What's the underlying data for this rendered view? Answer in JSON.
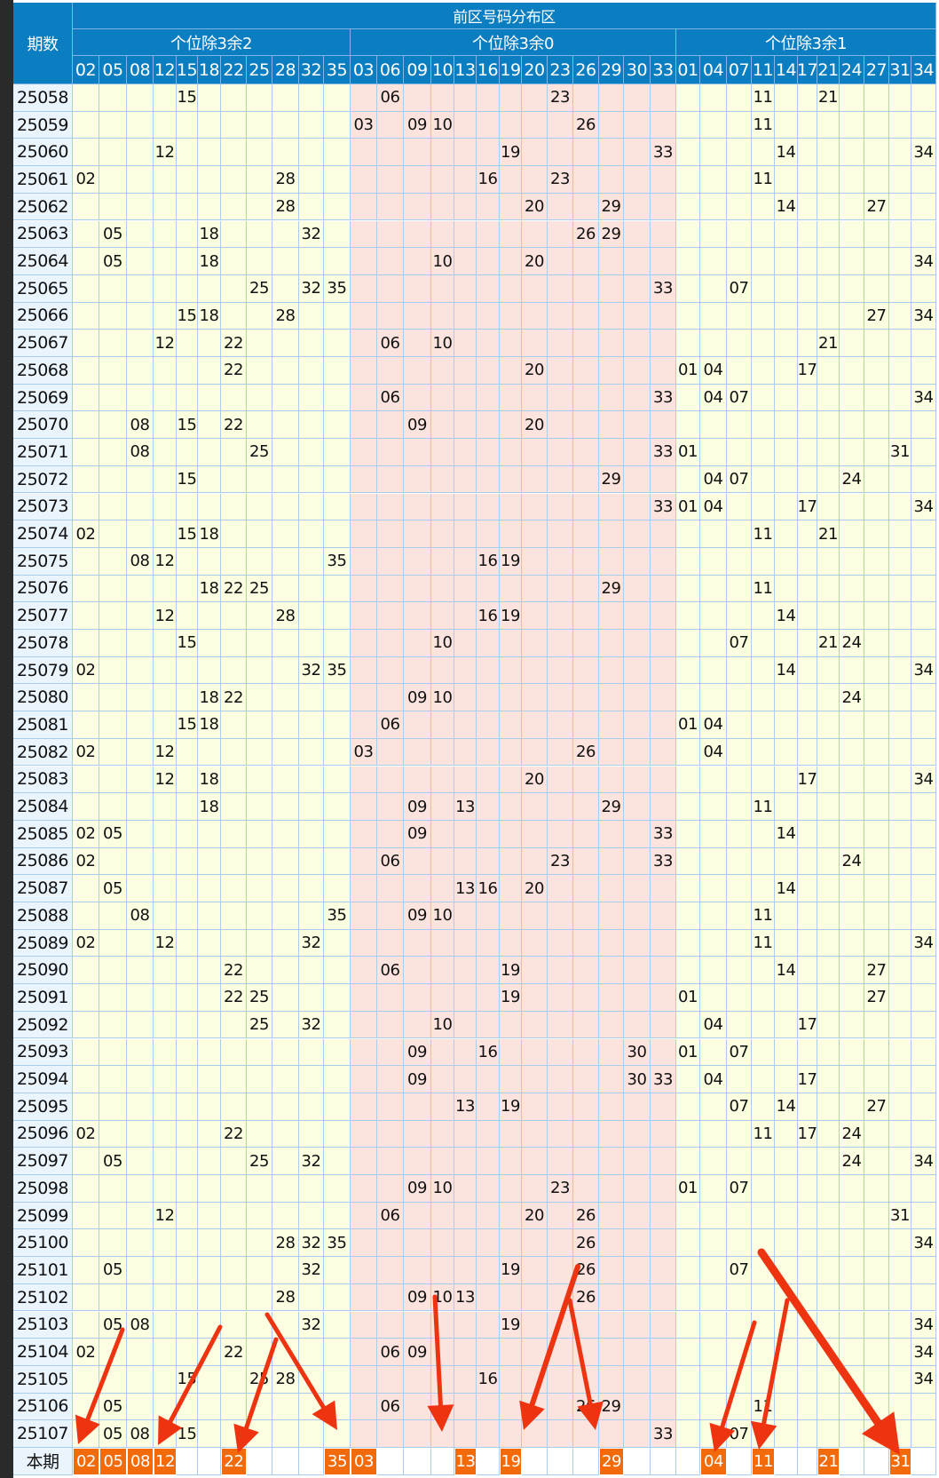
{
  "header": {
    "title": "前区号码分布区",
    "period_label": "期数",
    "groups": [
      {
        "label": "个位除3余2",
        "columns": [
          "02",
          "05",
          "08",
          "12",
          "15",
          "18",
          "22",
          "25",
          "28",
          "32",
          "35"
        ]
      },
      {
        "label": "个位除3余0",
        "columns": [
          "03",
          "06",
          "09",
          "10",
          "13",
          "16",
          "19",
          "20",
          "23",
          "26",
          "29",
          "30",
          "33"
        ]
      },
      {
        "label": "个位除3余1",
        "columns": [
          "01",
          "04",
          "07",
          "11",
          "14",
          "17",
          "21",
          "24",
          "27",
          "31",
          "34"
        ]
      }
    ]
  },
  "colors": {
    "header": "#0b7dc1",
    "group_yellow": "#fdfde1",
    "group_pink": "#fde3de",
    "highlight": "#f36a0a",
    "arrow": "#ee3311"
  },
  "rows": [
    {
      "period": "25058",
      "nums": [
        "15",
        "06",
        "23",
        "11",
        "21"
      ]
    },
    {
      "period": "25059",
      "nums": [
        "03",
        "09",
        "10",
        "26",
        "11"
      ]
    },
    {
      "period": "25060",
      "nums": [
        "12",
        "19",
        "33",
        "14",
        "34"
      ]
    },
    {
      "period": "25061",
      "nums": [
        "02",
        "28",
        "16",
        "23",
        "11"
      ]
    },
    {
      "period": "25062",
      "nums": [
        "28",
        "20",
        "29",
        "14",
        "27"
      ]
    },
    {
      "period": "25063",
      "nums": [
        "05",
        "18",
        "32",
        "26",
        "29"
      ]
    },
    {
      "period": "25064",
      "nums": [
        "05",
        "18",
        "10",
        "20",
        "34"
      ]
    },
    {
      "period": "25065",
      "nums": [
        "25",
        "32",
        "35",
        "33",
        "07"
      ]
    },
    {
      "period": "25066",
      "nums": [
        "15",
        "18",
        "28",
        "27",
        "34"
      ]
    },
    {
      "period": "25067",
      "nums": [
        "12",
        "22",
        "06",
        "10",
        "21"
      ]
    },
    {
      "period": "25068",
      "nums": [
        "22",
        "20",
        "01",
        "04",
        "17"
      ]
    },
    {
      "period": "25069",
      "nums": [
        "06",
        "33",
        "04",
        "07",
        "34"
      ]
    },
    {
      "period": "25070",
      "nums": [
        "08",
        "15",
        "22",
        "09",
        "20"
      ]
    },
    {
      "period": "25071",
      "nums": [
        "08",
        "25",
        "33",
        "01",
        "31"
      ]
    },
    {
      "period": "25072",
      "nums": [
        "15",
        "29",
        "04",
        "07",
        "24"
      ]
    },
    {
      "period": "25073",
      "nums": [
        "33",
        "01",
        "04",
        "17",
        "34"
      ]
    },
    {
      "period": "25074",
      "nums": [
        "02",
        "15",
        "18",
        "11",
        "21"
      ]
    },
    {
      "period": "25075",
      "nums": [
        "08",
        "12",
        "35",
        "16",
        "19"
      ]
    },
    {
      "period": "25076",
      "nums": [
        "18",
        "22",
        "25",
        "29",
        "11"
      ]
    },
    {
      "period": "25077",
      "nums": [
        "12",
        "28",
        "16",
        "19",
        "14"
      ]
    },
    {
      "period": "25078",
      "nums": [
        "15",
        "10",
        "07",
        "21",
        "24"
      ]
    },
    {
      "period": "25079",
      "nums": [
        "02",
        "32",
        "35",
        "14",
        "34"
      ]
    },
    {
      "period": "25080",
      "nums": [
        "18",
        "22",
        "09",
        "10",
        "24"
      ]
    },
    {
      "period": "25081",
      "nums": [
        "15",
        "18",
        "06",
        "01",
        "04"
      ]
    },
    {
      "period": "25082",
      "nums": [
        "02",
        "12",
        "03",
        "26",
        "04"
      ]
    },
    {
      "period": "25083",
      "nums": [
        "12",
        "18",
        "20",
        "17",
        "34"
      ]
    },
    {
      "period": "25084",
      "nums": [
        "18",
        "09",
        "13",
        "29",
        "11"
      ]
    },
    {
      "period": "25085",
      "nums": [
        "02",
        "05",
        "09",
        "33",
        "14"
      ]
    },
    {
      "period": "25086",
      "nums": [
        "02",
        "06",
        "23",
        "33",
        "24"
      ]
    },
    {
      "period": "25087",
      "nums": [
        "05",
        "13",
        "16",
        "20",
        "14"
      ]
    },
    {
      "period": "25088",
      "nums": [
        "08",
        "35",
        "09",
        "10",
        "11"
      ]
    },
    {
      "period": "25089",
      "nums": [
        "02",
        "12",
        "32",
        "11",
        "34"
      ]
    },
    {
      "period": "25090",
      "nums": [
        "22",
        "06",
        "19",
        "14",
        "27"
      ]
    },
    {
      "period": "25091",
      "nums": [
        "22",
        "25",
        "19",
        "01",
        "27"
      ]
    },
    {
      "period": "25092",
      "nums": [
        "25",
        "32",
        "10",
        "04",
        "17"
      ]
    },
    {
      "period": "25093",
      "nums": [
        "09",
        "16",
        "30",
        "01",
        "07"
      ]
    },
    {
      "period": "25094",
      "nums": [
        "09",
        "30",
        "33",
        "04",
        "17"
      ]
    },
    {
      "period": "25095",
      "nums": [
        "13",
        "19",
        "07",
        "14",
        "27"
      ]
    },
    {
      "period": "25096",
      "nums": [
        "02",
        "22",
        "11",
        "17",
        "24"
      ]
    },
    {
      "period": "25097",
      "nums": [
        "05",
        "25",
        "32",
        "24",
        "34"
      ]
    },
    {
      "period": "25098",
      "nums": [
        "09",
        "10",
        "23",
        "01",
        "07"
      ]
    },
    {
      "period": "25099",
      "nums": [
        "12",
        "06",
        "20",
        "26",
        "31"
      ]
    },
    {
      "period": "25100",
      "nums": [
        "28",
        "32",
        "35",
        "26",
        "34"
      ]
    },
    {
      "period": "25101",
      "nums": [
        "05",
        "32",
        "19",
        "26",
        "07"
      ]
    },
    {
      "period": "25102",
      "nums": [
        "28",
        "09",
        "10",
        "13",
        "26"
      ]
    },
    {
      "period": "25103",
      "nums": [
        "05",
        "08",
        "32",
        "19",
        "34"
      ]
    },
    {
      "period": "25104",
      "nums": [
        "02",
        "22",
        "06",
        "09",
        "34"
      ]
    },
    {
      "period": "25105",
      "nums": [
        "15",
        "25",
        "28",
        "16",
        "34"
      ]
    },
    {
      "period": "25106",
      "nums": [
        "05",
        "06",
        "26",
        "29",
        "11"
      ]
    },
    {
      "period": "25107",
      "nums": [
        "05",
        "08",
        "15",
        "33",
        "07"
      ]
    }
  ],
  "current": {
    "label": "本期",
    "nums": [
      "02",
      "05",
      "08",
      "12",
      "22",
      "35",
      "03",
      "13",
      "19",
      "29",
      "04",
      "11",
      "21",
      "31"
    ]
  }
}
